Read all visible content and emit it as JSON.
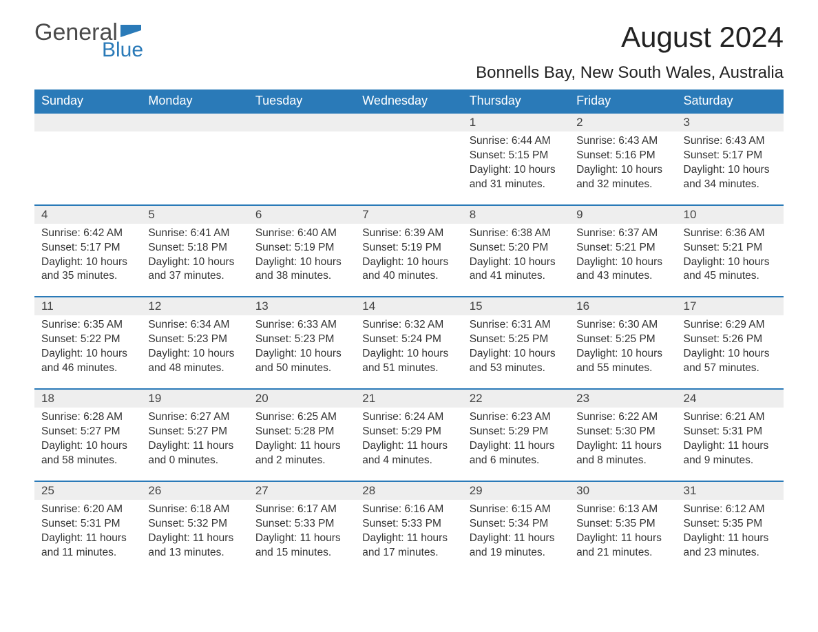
{
  "logo": {
    "text_general": "General",
    "text_blue": "Blue",
    "flag_color": "#2a7ab8"
  },
  "title": "August 2024",
  "location": "Bonnells Bay, New South Wales, Australia",
  "colors": {
    "header_bg": "#2a7ab8",
    "header_text": "#ffffff",
    "daynum_bg": "#eeeeee",
    "row_border": "#2a7ab8",
    "body_bg": "#ffffff",
    "text": "#333333"
  },
  "weekdays": [
    "Sunday",
    "Monday",
    "Tuesday",
    "Wednesday",
    "Thursday",
    "Friday",
    "Saturday"
  ],
  "weeks": [
    [
      null,
      null,
      null,
      null,
      {
        "n": "1",
        "sunrise": "6:44 AM",
        "sunset": "5:15 PM",
        "dl_h": "10",
        "dl_m": "31"
      },
      {
        "n": "2",
        "sunrise": "6:43 AM",
        "sunset": "5:16 PM",
        "dl_h": "10",
        "dl_m": "32"
      },
      {
        "n": "3",
        "sunrise": "6:43 AM",
        "sunset": "5:17 PM",
        "dl_h": "10",
        "dl_m": "34"
      }
    ],
    [
      {
        "n": "4",
        "sunrise": "6:42 AM",
        "sunset": "5:17 PM",
        "dl_h": "10",
        "dl_m": "35"
      },
      {
        "n": "5",
        "sunrise": "6:41 AM",
        "sunset": "5:18 PM",
        "dl_h": "10",
        "dl_m": "37"
      },
      {
        "n": "6",
        "sunrise": "6:40 AM",
        "sunset": "5:19 PM",
        "dl_h": "10",
        "dl_m": "38"
      },
      {
        "n": "7",
        "sunrise": "6:39 AM",
        "sunset": "5:19 PM",
        "dl_h": "10",
        "dl_m": "40"
      },
      {
        "n": "8",
        "sunrise": "6:38 AM",
        "sunset": "5:20 PM",
        "dl_h": "10",
        "dl_m": "41"
      },
      {
        "n": "9",
        "sunrise": "6:37 AM",
        "sunset": "5:21 PM",
        "dl_h": "10",
        "dl_m": "43"
      },
      {
        "n": "10",
        "sunrise": "6:36 AM",
        "sunset": "5:21 PM",
        "dl_h": "10",
        "dl_m": "45"
      }
    ],
    [
      {
        "n": "11",
        "sunrise": "6:35 AM",
        "sunset": "5:22 PM",
        "dl_h": "10",
        "dl_m": "46"
      },
      {
        "n": "12",
        "sunrise": "6:34 AM",
        "sunset": "5:23 PM",
        "dl_h": "10",
        "dl_m": "48"
      },
      {
        "n": "13",
        "sunrise": "6:33 AM",
        "sunset": "5:23 PM",
        "dl_h": "10",
        "dl_m": "50"
      },
      {
        "n": "14",
        "sunrise": "6:32 AM",
        "sunset": "5:24 PM",
        "dl_h": "10",
        "dl_m": "51"
      },
      {
        "n": "15",
        "sunrise": "6:31 AM",
        "sunset": "5:25 PM",
        "dl_h": "10",
        "dl_m": "53"
      },
      {
        "n": "16",
        "sunrise": "6:30 AM",
        "sunset": "5:25 PM",
        "dl_h": "10",
        "dl_m": "55"
      },
      {
        "n": "17",
        "sunrise": "6:29 AM",
        "sunset": "5:26 PM",
        "dl_h": "10",
        "dl_m": "57"
      }
    ],
    [
      {
        "n": "18",
        "sunrise": "6:28 AM",
        "sunset": "5:27 PM",
        "dl_h": "10",
        "dl_m": "58"
      },
      {
        "n": "19",
        "sunrise": "6:27 AM",
        "sunset": "5:27 PM",
        "dl_h": "11",
        "dl_m": "0"
      },
      {
        "n": "20",
        "sunrise": "6:25 AM",
        "sunset": "5:28 PM",
        "dl_h": "11",
        "dl_m": "2"
      },
      {
        "n": "21",
        "sunrise": "6:24 AM",
        "sunset": "5:29 PM",
        "dl_h": "11",
        "dl_m": "4"
      },
      {
        "n": "22",
        "sunrise": "6:23 AM",
        "sunset": "5:29 PM",
        "dl_h": "11",
        "dl_m": "6"
      },
      {
        "n": "23",
        "sunrise": "6:22 AM",
        "sunset": "5:30 PM",
        "dl_h": "11",
        "dl_m": "8"
      },
      {
        "n": "24",
        "sunrise": "6:21 AM",
        "sunset": "5:31 PM",
        "dl_h": "11",
        "dl_m": "9"
      }
    ],
    [
      {
        "n": "25",
        "sunrise": "6:20 AM",
        "sunset": "5:31 PM",
        "dl_h": "11",
        "dl_m": "11"
      },
      {
        "n": "26",
        "sunrise": "6:18 AM",
        "sunset": "5:32 PM",
        "dl_h": "11",
        "dl_m": "13"
      },
      {
        "n": "27",
        "sunrise": "6:17 AM",
        "sunset": "5:33 PM",
        "dl_h": "11",
        "dl_m": "15"
      },
      {
        "n": "28",
        "sunrise": "6:16 AM",
        "sunset": "5:33 PM",
        "dl_h": "11",
        "dl_m": "17"
      },
      {
        "n": "29",
        "sunrise": "6:15 AM",
        "sunset": "5:34 PM",
        "dl_h": "11",
        "dl_m": "19"
      },
      {
        "n": "30",
        "sunrise": "6:13 AM",
        "sunset": "5:35 PM",
        "dl_h": "11",
        "dl_m": "21"
      },
      {
        "n": "31",
        "sunrise": "6:12 AM",
        "sunset": "5:35 PM",
        "dl_h": "11",
        "dl_m": "23"
      }
    ]
  ],
  "labels": {
    "sunrise_prefix": "Sunrise: ",
    "sunset_prefix": "Sunset: ",
    "daylight_prefix": "Daylight: ",
    "hours_word": " hours",
    "and_word": "and ",
    "minutes_word": " minutes."
  }
}
